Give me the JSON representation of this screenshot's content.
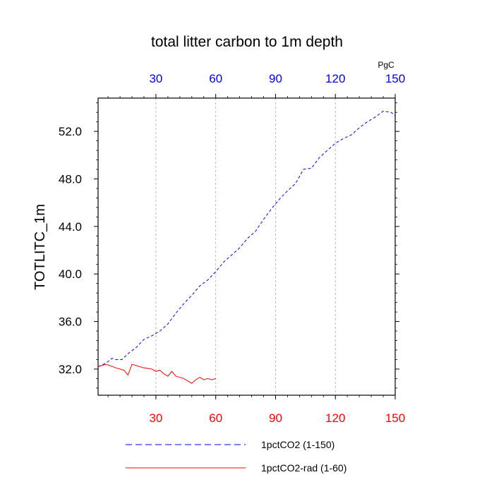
{
  "chart_data": {
    "type": "line",
    "title": "total litter carbon to 1m depth",
    "ylabel": "TOTLITC_1m",
    "units": "PgC",
    "xlim": [
      1,
      150
    ],
    "ylim": [
      29.8,
      54.8
    ],
    "x_ticks": [
      30,
      60,
      90,
      120,
      150
    ],
    "x_tick_labels": [
      "30",
      "60",
      "90",
      "120",
      "150"
    ],
    "y_ticks": [
      32,
      36,
      40,
      44,
      48,
      52
    ],
    "y_tick_labels": [
      "32.0",
      "36.0",
      "40.0",
      "44.0",
      "48.0",
      "52.0"
    ],
    "grid": "vertical dashed at major x ticks",
    "top_axis_color": "#0000ff",
    "bottom_axis_color": "#ff0000",
    "legend_position": "bottom",
    "series": [
      {
        "name": "1pctCO2 (1-150)",
        "color": "#0000ff",
        "dash": "dashed",
        "x": [
          1,
          5,
          8,
          10,
          13,
          16,
          20,
          24,
          28,
          32,
          36,
          40,
          44,
          48,
          52,
          56,
          60,
          64,
          68,
          72,
          76,
          80,
          84,
          88,
          92,
          96,
          100,
          104,
          108,
          112,
          116,
          120,
          124,
          128,
          132,
          136,
          140,
          144,
          148,
          150
        ],
        "y": [
          32.2,
          32.5,
          32.9,
          32.8,
          32.8,
          33.3,
          33.8,
          34.5,
          34.8,
          35.2,
          35.8,
          36.7,
          37.5,
          38.2,
          39.0,
          39.5,
          40.2,
          41.0,
          41.6,
          42.2,
          43.0,
          43.6,
          44.6,
          45.5,
          46.3,
          47.0,
          47.6,
          48.8,
          48.9,
          49.8,
          50.4,
          51.0,
          51.4,
          51.7,
          52.3,
          52.8,
          53.2,
          53.7,
          53.6,
          53.3
        ]
      },
      {
        "name": "1pctCO2-rad (1-60)",
        "color": "#ff0000",
        "dash": "solid",
        "x": [
          1,
          5,
          10,
          14,
          16,
          18,
          20,
          24,
          28,
          30,
          32,
          34,
          36,
          38,
          40,
          42,
          44,
          46,
          48,
          50,
          52,
          54,
          56,
          58,
          60
        ],
        "y": [
          32.2,
          32.4,
          32.1,
          31.9,
          31.5,
          32.4,
          32.3,
          32.1,
          32.0,
          31.8,
          31.9,
          31.6,
          31.4,
          31.8,
          31.4,
          31.3,
          31.2,
          31.0,
          30.8,
          31.1,
          31.3,
          31.1,
          31.2,
          31.1,
          31.2
        ]
      }
    ]
  }
}
